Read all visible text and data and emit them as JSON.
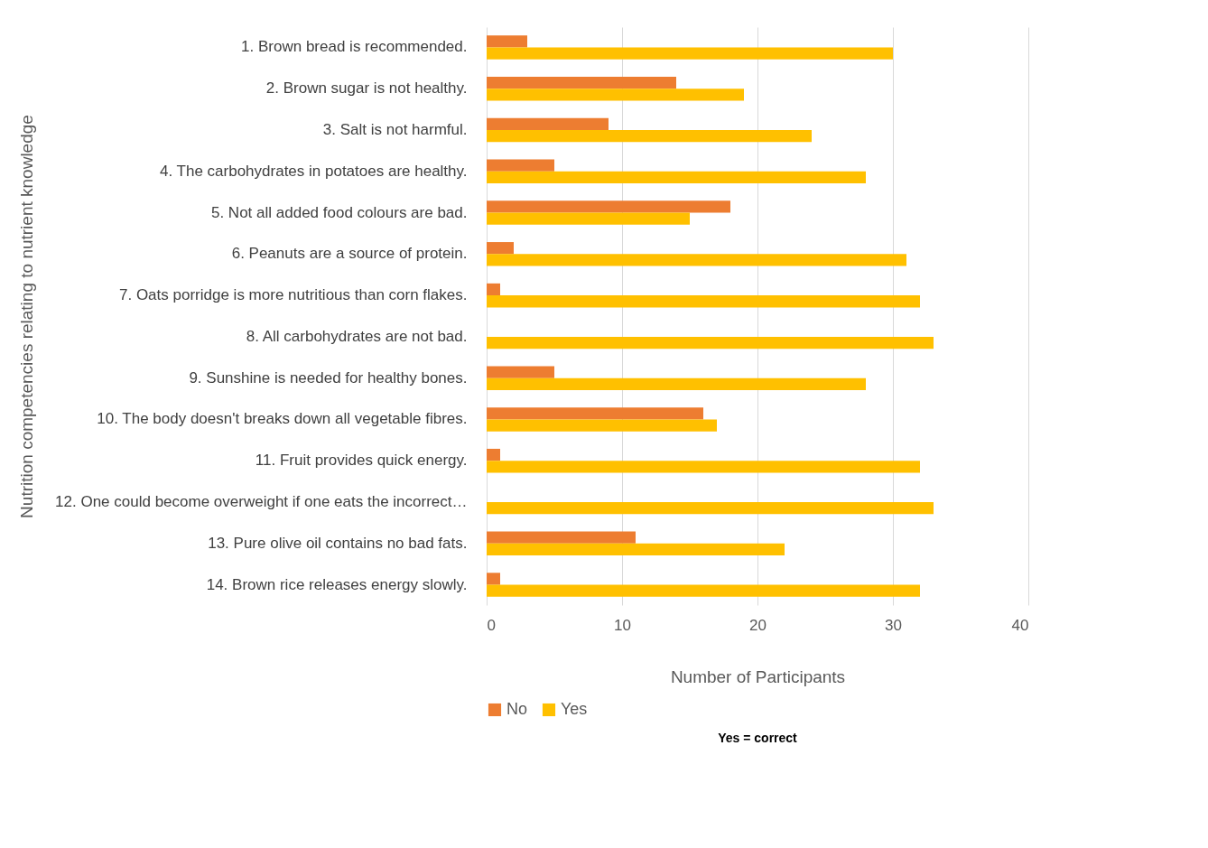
{
  "chart_data": {
    "type": "bar",
    "orientation": "horizontal",
    "xlabel": "Number of Participants",
    "ylabel": "Nutrition competencies relating to nutrient knowledge",
    "categories": [
      "1. Brown bread is recommended.",
      "2. Brown sugar is not healthy.",
      "3. Salt is not harmful.",
      "4. The carbohydrates in potatoes are healthy.",
      "5. Not all added food colours are bad.",
      "6. Peanuts are a source of protein.",
      "7. Oats porridge is more nutritious than corn flakes.",
      "8. All carbohydrates are not bad.",
      "9. Sunshine is needed for healthy bones.",
      "10. The body doesn't breaks down all vegetable fibres.",
      "11. Fruit provides quick energy.",
      "12. One could become overweight if one eats the incorrect…",
      "13. Pure olive oil contains no bad fats.",
      "14. Brown rice releases energy slowly."
    ],
    "series": [
      {
        "name": "No",
        "color": "#ed7d31",
        "values": [
          3,
          14,
          9,
          5,
          18,
          2,
          1,
          0,
          5,
          16,
          1,
          0,
          11,
          1
        ]
      },
      {
        "name": "Yes",
        "color": "#ffc000",
        "values": [
          30,
          19,
          24,
          28,
          15,
          31,
          32,
          33,
          28,
          17,
          32,
          33,
          22,
          32
        ]
      }
    ],
    "xlim": [
      0,
      40
    ],
    "xticks": [
      0,
      10,
      20,
      30,
      40
    ],
    "grid": "x",
    "legend": "bottom",
    "annotations": [
      "Yes = correct"
    ]
  }
}
